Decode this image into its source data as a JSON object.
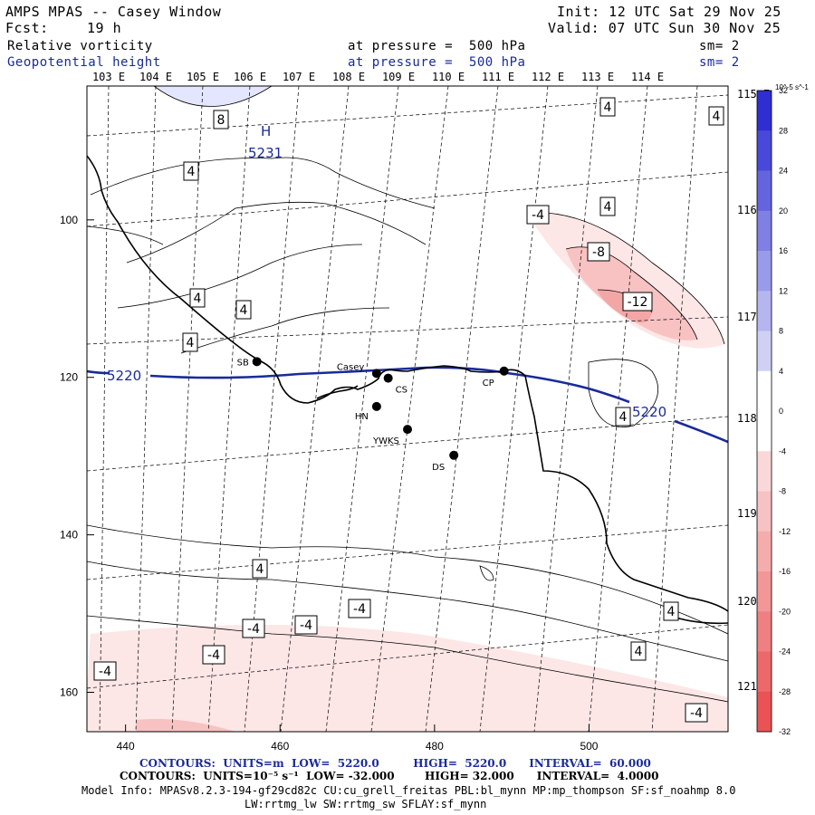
{
  "header": {
    "title": "AMPS MPAS -- Casey Window",
    "init": "Init: 12 UTC Sat 29 Nov 25",
    "fcst_label": "Fcst:",
    "fcst_value": "19 h",
    "valid": "Valid: 07 UTC Sun 30 Nov 25",
    "field1": "Relative vorticity",
    "pressure1": "at pressure =  500 hPa",
    "sm1": "sm= 2",
    "field2": "Geopotential height",
    "pressure2": "at pressure =  500 hPa",
    "sm2": "sm= 2"
  },
  "colors": {
    "height_contour": "#1a2a9a",
    "neg_fill": "#e8484a",
    "pos_fill": "#2020d0",
    "coast": "#000000"
  },
  "chart_data": {
    "type": "contour_map",
    "x_ticks": [
      440,
      460,
      480,
      500
    ],
    "y_ticks": [
      100,
      120,
      140,
      160
    ],
    "xlim": [
      435,
      518
    ],
    "ylim": [
      83,
      165
    ],
    "lon_labels_top": [
      "103 E",
      "104 E",
      "105 E",
      "106 E",
      "107 E",
      "108 E",
      "109 E",
      "110 E",
      "111 E",
      "112 E",
      "113 E",
      "114 E"
    ],
    "lat_labels_right": [
      "115 E",
      "116 E",
      "117 E",
      "118 E",
      "119 E",
      "120 E",
      "121 E"
    ],
    "colorbar": {
      "unit_label": "10^-5 s^-1",
      "ticks": [
        32,
        28,
        24,
        20,
        16,
        12,
        8,
        4,
        0,
        -4,
        -8,
        -12,
        -16,
        -20,
        -24,
        -28,
        -32
      ]
    },
    "high_marker": {
      "letter": "H",
      "value": "5231"
    },
    "height_contour_labels": [
      "5220",
      "5220"
    ],
    "vorticity_labels": [
      "8",
      "4",
      "4",
      "4",
      "4",
      "4",
      "4",
      "-4",
      "-8",
      "-12",
      "4",
      "4",
      "4",
      "-4",
      "-4",
      "-4",
      "-4",
      "-4",
      "4",
      "4",
      "-4"
    ],
    "stations": [
      {
        "name": "SB",
        "x": 457,
        "y": 118
      },
      {
        "name": "Casey",
        "x": 472.5,
        "y": 119.5
      },
      {
        "name": "CS",
        "x": 474,
        "y": 120.1
      },
      {
        "name": "HN",
        "x": 472.5,
        "y": 123.7
      },
      {
        "name": "YWKS",
        "x": 476.5,
        "y": 126.6
      },
      {
        "name": "DS",
        "x": 482.5,
        "y": 129.9
      },
      {
        "name": "CP",
        "x": 489,
        "y": 119.2
      }
    ]
  },
  "footer": {
    "line1_contours": "CONTOURS:  UNITS=m  LOW=  5220.0         HIGH=  5220.0      INTERVAL=  60.000",
    "line2_contours": "CONTOURS:  UNITS=10⁻⁵ s⁻¹  LOW= -32.000        HIGH= 32.000      INTERVAL=  4.0000",
    "line3_model": "Model Info: MPASv8.2.3-194-gf29cd82c CU:cu_grell_freitas PBL:bl_mynn MP:mp_thompson SF:sf_noahmp 8.0",
    "line4_model": "LW:rrtmg_lw SW:rrtmg_sw SFLAY:sf_mynn"
  }
}
